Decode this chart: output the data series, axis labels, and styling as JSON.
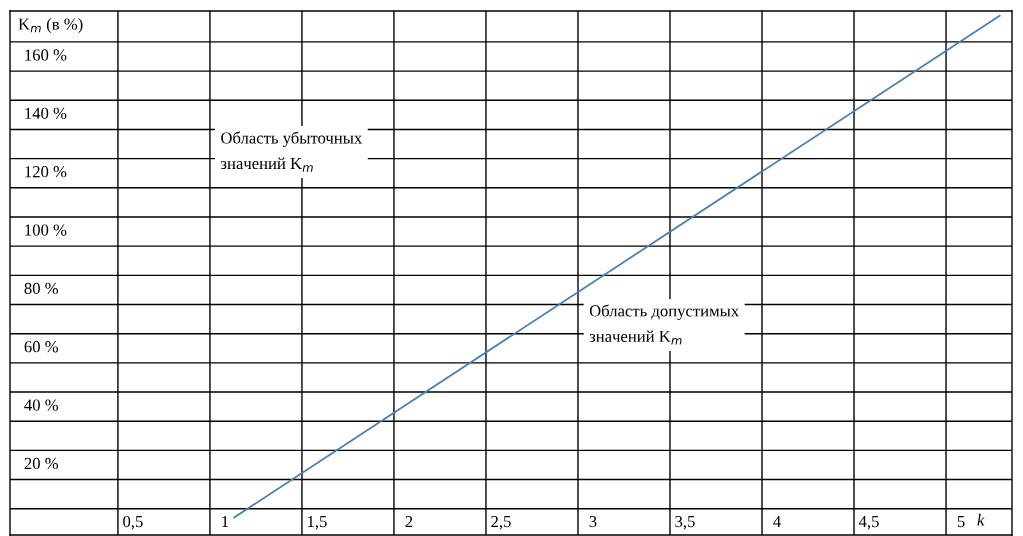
{
  "chart_data": {
    "type": "line",
    "xlabel": "k",
    "ylabel": "K$_{m}$ (в %)",
    "series": [
      {
        "color": "#4a7ebb",
        "x": [
          1.05,
          5.21
        ],
        "values": [
          -3,
          169
        ]
      }
    ],
    "xlim": [
      -0.168,
      5.277
    ],
    "xticks": [
      {
        "value": 0.5,
        "label": "0,5"
      },
      1,
      {
        "value": 1.5,
        "label": "1,5"
      },
      2,
      {
        "value": 2.5,
        "label": "2,5"
      },
      3,
      {
        "value": 3.5,
        "label": "3,5"
      },
      4,
      {
        "value": 4.5,
        "label": "4,5"
      },
      5
    ],
    "ylim": [
      -9,
      170.6
    ],
    "yticks": [
      {
        "value": 0,
        "label": null
      },
      {
        "value": 10,
        "label": null
      },
      {
        "value": 20,
        "label": "20 %"
      },
      {
        "value": 30,
        "label": null
      },
      {
        "value": 40,
        "label": "40 %"
      },
      {
        "value": 50,
        "label": null
      },
      {
        "value": 60,
        "label": "60 %"
      },
      {
        "value": 70,
        "label": null
      },
      {
        "value": 80,
        "label": "80 %"
      },
      {
        "value": 90,
        "label": null
      },
      {
        "value": 100,
        "label": "100 %"
      },
      {
        "value": 110,
        "label": null
      },
      {
        "value": 120,
        "label": "120 %"
      },
      {
        "value": 130,
        "label": null
      },
      {
        "value": 140,
        "label": "140 %"
      },
      {
        "value": 150,
        "label": null
      },
      {
        "value": 160,
        "label": "160 %"
      }
    ],
    "grid": true,
    "annotations": [
      "Область убыточных\nзначений K$_{m}$",
      "Область допустимых\nзначений K$_{m}$"
    ]
  }
}
